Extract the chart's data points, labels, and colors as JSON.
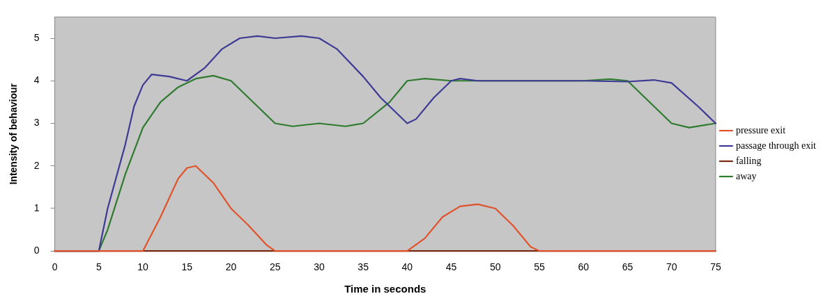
{
  "chart_data": {
    "type": "line",
    "xlabel": "Time in seconds",
    "ylabel": "Intensity of behaviour",
    "xlim": [
      0,
      75
    ],
    "xticks": [
      0,
      5,
      10,
      15,
      20,
      25,
      30,
      35,
      40,
      45,
      50,
      55,
      60,
      65,
      70,
      75
    ],
    "ylim": [
      0,
      5.5
    ],
    "yticks": [
      0,
      1,
      2,
      3,
      4,
      5
    ],
    "grid": false,
    "legend": "right",
    "marker": "none",
    "line_style": "solid",
    "series": [
      {
        "name": "pressure exit",
        "color": "#e0522a",
        "x": [
          0,
          10,
          12,
          14,
          15,
          16,
          18,
          20,
          22,
          24,
          25,
          40,
          42,
          44,
          46,
          48,
          50,
          52,
          54,
          55,
          75
        ],
        "values": [
          0,
          0,
          0.8,
          1.7,
          1.95,
          2,
          1.6,
          1,
          0.6,
          0.15,
          0,
          0,
          0.3,
          0.8,
          1.05,
          1.1,
          1,
          0.6,
          0.1,
          0,
          0
        ]
      },
      {
        "name": "passage through exit",
        "color": "#3c3a94",
        "x": [
          0,
          5,
          6,
          8,
          9,
          10,
          11,
          13,
          15,
          17,
          19,
          21,
          23,
          25,
          28,
          30,
          32,
          35,
          37,
          40,
          41,
          43,
          45,
          46,
          48,
          50,
          60,
          65,
          68,
          70,
          73,
          75
        ],
        "values": [
          0,
          0,
          1,
          2.5,
          3.4,
          3.9,
          4.15,
          4.1,
          4,
          4.3,
          4.75,
          5,
          5.05,
          5,
          5.05,
          5,
          4.75,
          4.1,
          3.6,
          3,
          3.1,
          3.6,
          4,
          4.05,
          4,
          4,
          4,
          3.98,
          4.02,
          3.95,
          3.4,
          3
        ]
      },
      {
        "name": "falling",
        "color": "#7a2a10",
        "x": [
          0,
          75
        ],
        "values": [
          0,
          0
        ]
      },
      {
        "name": "away",
        "color": "#2e7a2e",
        "x": [
          0,
          5,
          6,
          8,
          10,
          12,
          14,
          16,
          18,
          20,
          22,
          24,
          25,
          27,
          30,
          33,
          35,
          38,
          40,
          42,
          45,
          60,
          63,
          65,
          67,
          70,
          72,
          75
        ],
        "values": [
          0,
          0,
          0.5,
          1.8,
          2.9,
          3.5,
          3.85,
          4.05,
          4.12,
          4,
          3.6,
          3.2,
          3,
          2.93,
          3,
          2.93,
          3,
          3.5,
          4,
          4.05,
          4,
          4,
          4.04,
          4,
          3.6,
          3,
          2.9,
          3
        ]
      }
    ]
  }
}
